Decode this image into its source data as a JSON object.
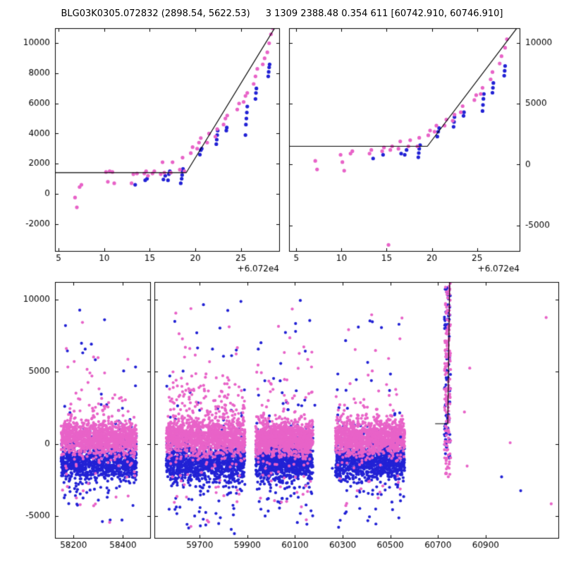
{
  "title": {
    "left": "BLG03K0305.072832 (2898.54, 5622.53)",
    "right": "3 1309 2388.48 0.354 611 [60742.910, 60746.910]"
  },
  "palette": {
    "pink": "#E863C8",
    "blue": "#2222D5",
    "line": "#000000",
    "axis": "#000000",
    "bg": "#FFFFFF"
  },
  "chart_data": [
    {
      "id": "zoom-left",
      "type": "scatter",
      "xlim": [
        4.6,
        29.2
      ],
      "ylim": [
        -3800,
        11000
      ],
      "xticks": [
        5,
        10,
        15,
        20,
        25
      ],
      "yticks": [
        -2000,
        0,
        2000,
        4000,
        6000,
        8000,
        10000
      ],
      "ytick_side": "left",
      "x_offset_label": "+6.072e4",
      "line_points": [
        [
          4.6,
          1400
        ],
        [
          19.0,
          1400
        ],
        [
          28.9,
          11200
        ]
      ],
      "series": [
        {
          "name": "blue-band",
          "color_key": "blue",
          "points": [
            [
              13.4,
              600
            ],
            [
              14.5,
              900
            ],
            [
              14.7,
              1000
            ],
            [
              16.5,
              950
            ],
            [
              16.7,
              1200
            ],
            [
              17.0,
              900
            ],
            [
              17.1,
              1300
            ],
            [
              17.2,
              1500
            ],
            [
              18.4,
              700
            ],
            [
              18.5,
              1000
            ],
            [
              18.55,
              1250
            ],
            [
              18.6,
              1500
            ],
            [
              18.65,
              1650
            ],
            [
              20.5,
              2600
            ],
            [
              20.6,
              2900
            ],
            [
              20.7,
              3000
            ],
            [
              22.3,
              3300
            ],
            [
              22.35,
              3600
            ],
            [
              22.4,
              3900
            ],
            [
              22.45,
              4200
            ],
            [
              23.4,
              4200
            ],
            [
              23.45,
              4400
            ],
            [
              25.5,
              3900
            ],
            [
              25.55,
              4600
            ],
            [
              25.6,
              5000
            ],
            [
              25.65,
              5400
            ],
            [
              25.7,
              5800
            ],
            [
              26.6,
              6300
            ],
            [
              26.65,
              6700
            ],
            [
              26.7,
              7000
            ],
            [
              28.0,
              7800
            ],
            [
              28.05,
              8100
            ],
            [
              28.1,
              8400
            ],
            [
              28.15,
              8600
            ]
          ]
        },
        {
          "name": "pink-band",
          "color_key": "pink",
          "points": [
            [
              6.8,
              -250
            ],
            [
              7.0,
              -900
            ],
            [
              7.3,
              450
            ],
            [
              7.5,
              600
            ],
            [
              10.2,
              1450
            ],
            [
              10.4,
              800
            ],
            [
              10.6,
              1500
            ],
            [
              10.9,
              1450
            ],
            [
              11.1,
              700
            ],
            [
              13.0,
              700
            ],
            [
              13.2,
              1300
            ],
            [
              13.6,
              1350
            ],
            [
              14.4,
              1350
            ],
            [
              14.6,
              1500
            ],
            [
              14.8,
              1200
            ],
            [
              15.3,
              1350
            ],
            [
              15.5,
              1500
            ],
            [
              16.2,
              1300
            ],
            [
              16.4,
              2100
            ],
            [
              16.6,
              1400
            ],
            [
              17.3,
              1400
            ],
            [
              17.5,
              2100
            ],
            [
              18.3,
              1600
            ],
            [
              18.6,
              2400
            ],
            [
              18.8,
              1500
            ],
            [
              19.5,
              2700
            ],
            [
              19.7,
              3100
            ],
            [
              20.2,
              3000
            ],
            [
              20.4,
              3400
            ],
            [
              20.6,
              3700
            ],
            [
              21.3,
              3400
            ],
            [
              21.5,
              4000
            ],
            [
              22.2,
              3800
            ],
            [
              22.4,
              4300
            ],
            [
              23.1,
              4600
            ],
            [
              23.3,
              5000
            ],
            [
              23.5,
              5200
            ],
            [
              24.6,
              5600
            ],
            [
              24.8,
              6000
            ],
            [
              25.3,
              6100
            ],
            [
              25.5,
              6500
            ],
            [
              25.7,
              6700
            ],
            [
              26.4,
              7300
            ],
            [
              26.6,
              7800
            ],
            [
              26.8,
              8300
            ],
            [
              27.4,
              8600
            ],
            [
              27.6,
              9000
            ],
            [
              27.9,
              9400
            ],
            [
              28.1,
              10000
            ],
            [
              28.3,
              10600
            ],
            [
              28.5,
              11000
            ]
          ]
        }
      ]
    },
    {
      "id": "zoom-right",
      "type": "scatter",
      "xlim": [
        4.2,
        29.7
      ],
      "ylim": [
        -7100,
        11200
      ],
      "xticks": [
        5,
        10,
        15,
        20,
        25
      ],
      "yticks": [
        -5000,
        0,
        5000,
        10000
      ],
      "ytick_side": "right",
      "x_offset_label": "+6.072e4",
      "line_points": [
        [
          4.2,
          1500
        ],
        [
          19.5,
          1500
        ],
        [
          29.5,
          11300
        ]
      ],
      "series": [
        {
          "name": "blue-band",
          "color_key": "blue",
          "points": [
            [
              13.5,
              500
            ],
            [
              14.6,
              800
            ],
            [
              16.6,
              900
            ],
            [
              17.0,
              800
            ],
            [
              17.2,
              1200
            ],
            [
              18.5,
              600
            ],
            [
              18.55,
              950
            ],
            [
              18.6,
              1300
            ],
            [
              18.7,
              1600
            ],
            [
              20.6,
              2300
            ],
            [
              20.7,
              2700
            ],
            [
              20.8,
              3000
            ],
            [
              22.4,
              3100
            ],
            [
              22.45,
              3500
            ],
            [
              22.5,
              3900
            ],
            [
              23.5,
              4000
            ],
            [
              23.55,
              4300
            ],
            [
              25.6,
              4400
            ],
            [
              25.65,
              4900
            ],
            [
              25.7,
              5400
            ],
            [
              25.75,
              5800
            ],
            [
              26.7,
              5900
            ],
            [
              26.75,
              6300
            ],
            [
              26.8,
              6700
            ],
            [
              28.0,
              7300
            ],
            [
              28.05,
              7700
            ],
            [
              28.1,
              8100
            ]
          ]
        },
        {
          "name": "pink-band",
          "color_key": "pink",
          "points": [
            [
              7.1,
              300
            ],
            [
              7.3,
              -400
            ],
            [
              9.9,
              800
            ],
            [
              10.1,
              200
            ],
            [
              10.3,
              -500
            ],
            [
              11.0,
              900
            ],
            [
              11.2,
              1100
            ],
            [
              13.1,
              900
            ],
            [
              13.3,
              1200
            ],
            [
              14.5,
              1100
            ],
            [
              14.7,
              1400
            ],
            [
              15.2,
              -6600
            ],
            [
              15.4,
              1200
            ],
            [
              15.6,
              1500
            ],
            [
              16.3,
              1300
            ],
            [
              16.5,
              1900
            ],
            [
              17.4,
              1500
            ],
            [
              17.6,
              2000
            ],
            [
              18.4,
              1500
            ],
            [
              18.6,
              2200
            ],
            [
              19.6,
              2400
            ],
            [
              19.8,
              2800
            ],
            [
              20.3,
              2700
            ],
            [
              20.5,
              3200
            ],
            [
              21.4,
              3200
            ],
            [
              21.6,
              3700
            ],
            [
              22.3,
              3600
            ],
            [
              22.5,
              4100
            ],
            [
              23.2,
              4300
            ],
            [
              23.4,
              4800
            ],
            [
              24.7,
              5300
            ],
            [
              24.9,
              5700
            ],
            [
              25.4,
              5800
            ],
            [
              25.6,
              6300
            ],
            [
              26.5,
              7000
            ],
            [
              26.7,
              7600
            ],
            [
              27.5,
              8300
            ],
            [
              27.7,
              8900
            ],
            [
              28.1,
              9600
            ],
            [
              28.3,
              10300
            ]
          ]
        }
      ]
    },
    {
      "id": "full",
      "type": "scatter-broken-x",
      "ylim": [
        -6500,
        11200
      ],
      "yticks": [
        -5000,
        0,
        5000,
        10000
      ],
      "ytick_side": "left",
      "random_seed": 42,
      "segments": [
        {
          "xlim": [
            58125,
            58510
          ],
          "xticks": [
            58200,
            58400
          ],
          "width_frac": 0.19
        },
        {
          "xlim": [
            59510,
            61205
          ],
          "xticks": [
            59700,
            59900,
            60100,
            60300,
            60500,
            60700,
            60900
          ],
          "width_frac": 0.81
        }
      ],
      "line_points": [
        [
          60688,
          1400
        ],
        [
          60741,
          1400
        ],
        [
          60749,
          11300
        ]
      ],
      "clusters": [
        {
          "x": [
            58150,
            58455
          ],
          "parts": [
            {
              "color": "blue",
              "dist": "normal",
              "n": 850,
              "mu": -1300,
              "sigma": 600
            },
            {
              "color": "blue",
              "dist": "normal",
              "n": 110,
              "mu": -1400,
              "sigma": 1900
            },
            {
              "color": "blue",
              "dist": "uniform",
              "n": 30,
              "lo": -6300,
              "hi": 9800
            },
            {
              "color": "pink",
              "dist": "normal",
              "n": 1050,
              "mu": 400,
              "sigma": 550
            },
            {
              "color": "pink",
              "dist": "normal",
              "n": 130,
              "mu": 700,
              "sigma": 1800
            },
            {
              "color": "pink",
              "dist": "uniform",
              "n": 28,
              "lo": -5600,
              "hi": 9200
            }
          ]
        },
        {
          "x": [
            59560,
            59890
          ],
          "parts": [
            {
              "color": "blue",
              "dist": "normal",
              "n": 900,
              "mu": -1300,
              "sigma": 650
            },
            {
              "color": "blue",
              "dist": "normal",
              "n": 130,
              "mu": -1800,
              "sigma": 2000
            },
            {
              "color": "blue",
              "dist": "uniform",
              "n": 34,
              "lo": -7000,
              "hi": 9900
            },
            {
              "color": "pink",
              "dist": "normal",
              "n": 1100,
              "mu": 450,
              "sigma": 600
            },
            {
              "color": "pink",
              "dist": "normal",
              "n": 150,
              "mu": 900,
              "sigma": 1900
            },
            {
              "color": "pink",
              "dist": "normal",
              "n": 90,
              "mu": 2300,
              "sigma": 1400
            },
            {
              "color": "pink",
              "dist": "uniform",
              "n": 30,
              "lo": -5800,
              "hi": 9500
            }
          ]
        },
        {
          "x": [
            59935,
            60175
          ],
          "parts": [
            {
              "color": "blue",
              "dist": "normal",
              "n": 800,
              "mu": -1250,
              "sigma": 600
            },
            {
              "color": "blue",
              "dist": "normal",
              "n": 110,
              "mu": -1500,
              "sigma": 1900
            },
            {
              "color": "blue",
              "dist": "uniform",
              "n": 30,
              "lo": -6400,
              "hi": 10100
            },
            {
              "color": "pink",
              "dist": "normal",
              "n": 1000,
              "mu": 400,
              "sigma": 560
            },
            {
              "color": "pink",
              "dist": "normal",
              "n": 130,
              "mu": 800,
              "sigma": 1800
            },
            {
              "color": "pink",
              "dist": "uniform",
              "n": 28,
              "lo": -5500,
              "hi": 9700
            }
          ]
        },
        {
          "x": [
            60270,
            60560
          ],
          "parts": [
            {
              "color": "blue",
              "dist": "normal",
              "n": 820,
              "mu": -1300,
              "sigma": 600
            },
            {
              "color": "blue",
              "dist": "normal",
              "n": 110,
              "mu": -1500,
              "sigma": 1800
            },
            {
              "color": "blue",
              "dist": "uniform",
              "n": 28,
              "lo": -6000,
              "hi": 9600
            },
            {
              "color": "pink",
              "dist": "normal",
              "n": 1000,
              "mu": 420,
              "sigma": 560
            },
            {
              "color": "pink",
              "dist": "normal",
              "n": 130,
              "mu": 800,
              "sigma": 1700
            },
            {
              "color": "pink",
              "dist": "uniform",
              "n": 26,
              "lo": -5200,
              "hi": 9000
            }
          ]
        },
        {
          "x": [
            60727,
            60753
          ],
          "parts": [
            {
              "color": "blue",
              "dist": "uniform",
              "n": 90,
              "lo": -1600,
              "hi": 10900
            },
            {
              "color": "pink",
              "dist": "uniform",
              "n": 150,
              "lo": -2400,
              "hi": 11150
            }
          ]
        },
        {
          "x": [
            59530,
            61200
          ],
          "parts": [
            {
              "color": "blue",
              "dist": "uniform",
              "n": 10,
              "lo": -5800,
              "hi": 9900
            },
            {
              "color": "pink",
              "dist": "uniform",
              "n": 12,
              "lo": -5200,
              "hi": 9200
            }
          ]
        }
      ]
    }
  ]
}
